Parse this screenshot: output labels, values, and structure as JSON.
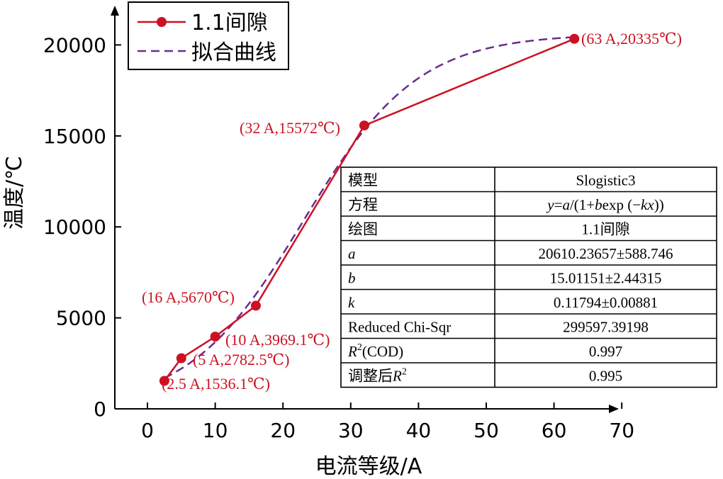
{
  "chart_data": {
    "type": "line",
    "xlabel": "电流等级/A",
    "ylabel": "温度/℃",
    "xlim": [
      -5,
      70
    ],
    "ylim": [
      0,
      22000
    ],
    "xticks": [
      0,
      10,
      20,
      30,
      40,
      50,
      60,
      70
    ],
    "yticks": [
      0,
      5000,
      10000,
      15000,
      20000
    ],
    "legend_position": "top-left",
    "colors": {
      "data": "#cc1122",
      "fit": "#6b2c91"
    },
    "series": [
      {
        "name": "1.1间隙",
        "x": [
          2.5,
          5,
          10,
          16,
          32,
          63
        ],
        "y": [
          1536.1,
          2782.5,
          3969.1,
          5670,
          15572,
          20335
        ]
      },
      {
        "name": "拟合曲线",
        "model": {
          "a": 20610.23657,
          "b": 15.01151,
          "k": 0.11794
        },
        "x_range": [
          2.5,
          63
        ]
      }
    ],
    "annotations": [
      "(2.5 A,1536.1℃)",
      "(5 A,2782.5℃)",
      "(10 A,3969.1℃)",
      "(16 A,5670℃)",
      "(32 A,15572℃)",
      "(63 A,20335℃)"
    ],
    "fit_table": [
      [
        "模型",
        "Slogistic3"
      ],
      [
        "方程",
        "y=a/(1+bexp (−kx))"
      ],
      [
        "绘图",
        "1.1间隙"
      ],
      [
        "a",
        "20610.23657±588.746"
      ],
      [
        "b",
        "15.01151±2.44315"
      ],
      [
        "k",
        "0.11794±0.00881"
      ],
      [
        "Reduced Chi-Sqr",
        "299597.39198"
      ],
      [
        "R2(COD)",
        "0.997"
      ],
      [
        "调整后R2",
        "0.995"
      ]
    ]
  }
}
